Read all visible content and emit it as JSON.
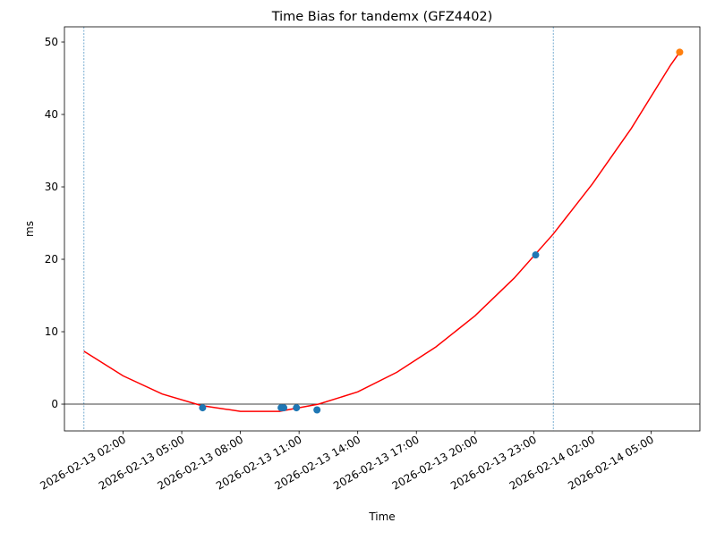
{
  "chart_data": {
    "type": "scatter",
    "title": "Time Bias for tandemx (GFZ4402)",
    "x_label": "Time",
    "y_label": "ms",
    "xlim": [
      "2026-02-12 23:00",
      "2026-02-14 07:30"
    ],
    "xticks": [
      "2026-02-13 02:00",
      "2026-02-13 05:00",
      "2026-02-13 08:00",
      "2026-02-13 11:00",
      "2026-02-13 14:00",
      "2026-02-13 17:00",
      "2026-02-13 20:00",
      "2026-02-13 23:00",
      "2026-02-14 02:00",
      "2026-02-14 05:00"
    ],
    "ylim": [
      -3.7,
      52.1
    ],
    "yticks": [
      0,
      10,
      20,
      30,
      40,
      50
    ],
    "hline": 0,
    "vlines": [
      "2026-02-13 00:00",
      "2026-02-14 00:00"
    ],
    "series": [
      {
        "type": "line",
        "color": "#ff0000",
        "x": [
          "2026-02-13 00:00",
          "2026-02-13 02:00",
          "2026-02-13 04:00",
          "2026-02-13 06:00",
          "2026-02-13 08:00",
          "2026-02-13 10:00",
          "2026-02-13 12:00",
          "2026-02-13 14:00",
          "2026-02-13 16:00",
          "2026-02-13 18:00",
          "2026-02-13 20:00",
          "2026-02-13 22:00",
          "2026-02-14 00:00",
          "2026-02-14 02:00",
          "2026-02-14 04:00",
          "2026-02-14 06:00",
          "2026-02-14 06:28"
        ],
        "values": [
          7.3,
          3.9,
          1.4,
          -0.2,
          -1.0,
          -1.0,
          0.0,
          1.7,
          4.4,
          7.9,
          12.2,
          17.4,
          23.5,
          30.4,
          38.1,
          46.8,
          48.6
        ]
      },
      {
        "type": "scatter",
        "color": "#1f77b4",
        "x": [
          "2026-02-13 06:04",
          "2026-02-13 10:05",
          "2026-02-13 10:13",
          "2026-02-13 10:52",
          "2026-02-13 11:55",
          "2026-02-13 23:06"
        ],
        "values": [
          -0.5,
          -0.5,
          -0.5,
          -0.5,
          -0.8,
          20.6
        ]
      },
      {
        "type": "scatter",
        "color": "#ff7f0e",
        "x": [
          "2026-02-14 06:28"
        ],
        "values": [
          48.6
        ]
      }
    ]
  }
}
